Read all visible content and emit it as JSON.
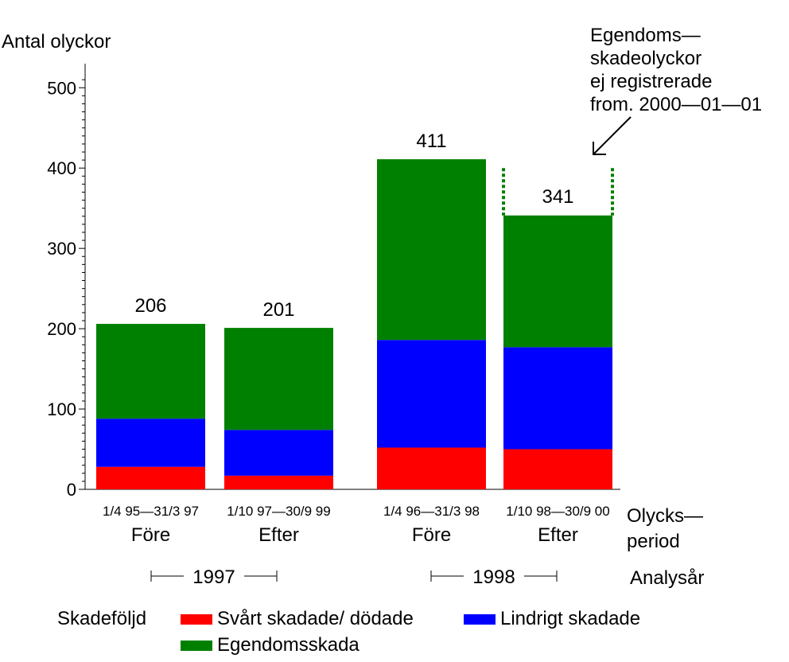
{
  "chart_data": {
    "type": "bar",
    "stacked": true,
    "ylabel": "Antal olyckor",
    "ylim": [
      0,
      530
    ],
    "yticks": [
      0,
      100,
      200,
      300,
      400,
      500
    ],
    "grid": false,
    "categories": [
      {
        "period": "1/4 95—31/3 97",
        "label": "Före"
      },
      {
        "period": "1/10 97—30/9 99",
        "label": "Efter"
      },
      {
        "period": "1/4 96—31/3 98",
        "label": "Före"
      },
      {
        "period": "1/10 98—30/9 00",
        "label": "Efter"
      }
    ],
    "series": [
      {
        "name": "Svårt skadade/ dödade",
        "color": "#ff0000",
        "values": [
          28,
          17,
          52,
          50
        ]
      },
      {
        "name": "Lindrigt skadade",
        "color": "#0000ff",
        "values": [
          60,
          57,
          134,
          127
        ]
      },
      {
        "name": "Egendomsskada",
        "color": "#008000",
        "values": [
          118,
          127,
          225,
          164
        ]
      }
    ],
    "totals": [
      206,
      201,
      411,
      341
    ],
    "xaxis_label": "Olycks—\nperiod",
    "analysis_years": [
      "1997",
      "1998"
    ],
    "analysis_label": "Analysår",
    "legend_title": "Skadeföljd",
    "annotation": [
      "Egendoms—",
      "skadeolyckor",
      "ej registrerade",
      "from. 2000—01—01"
    ],
    "dashed_marker_level": 400,
    "dashed_marker_color": "#008000"
  }
}
